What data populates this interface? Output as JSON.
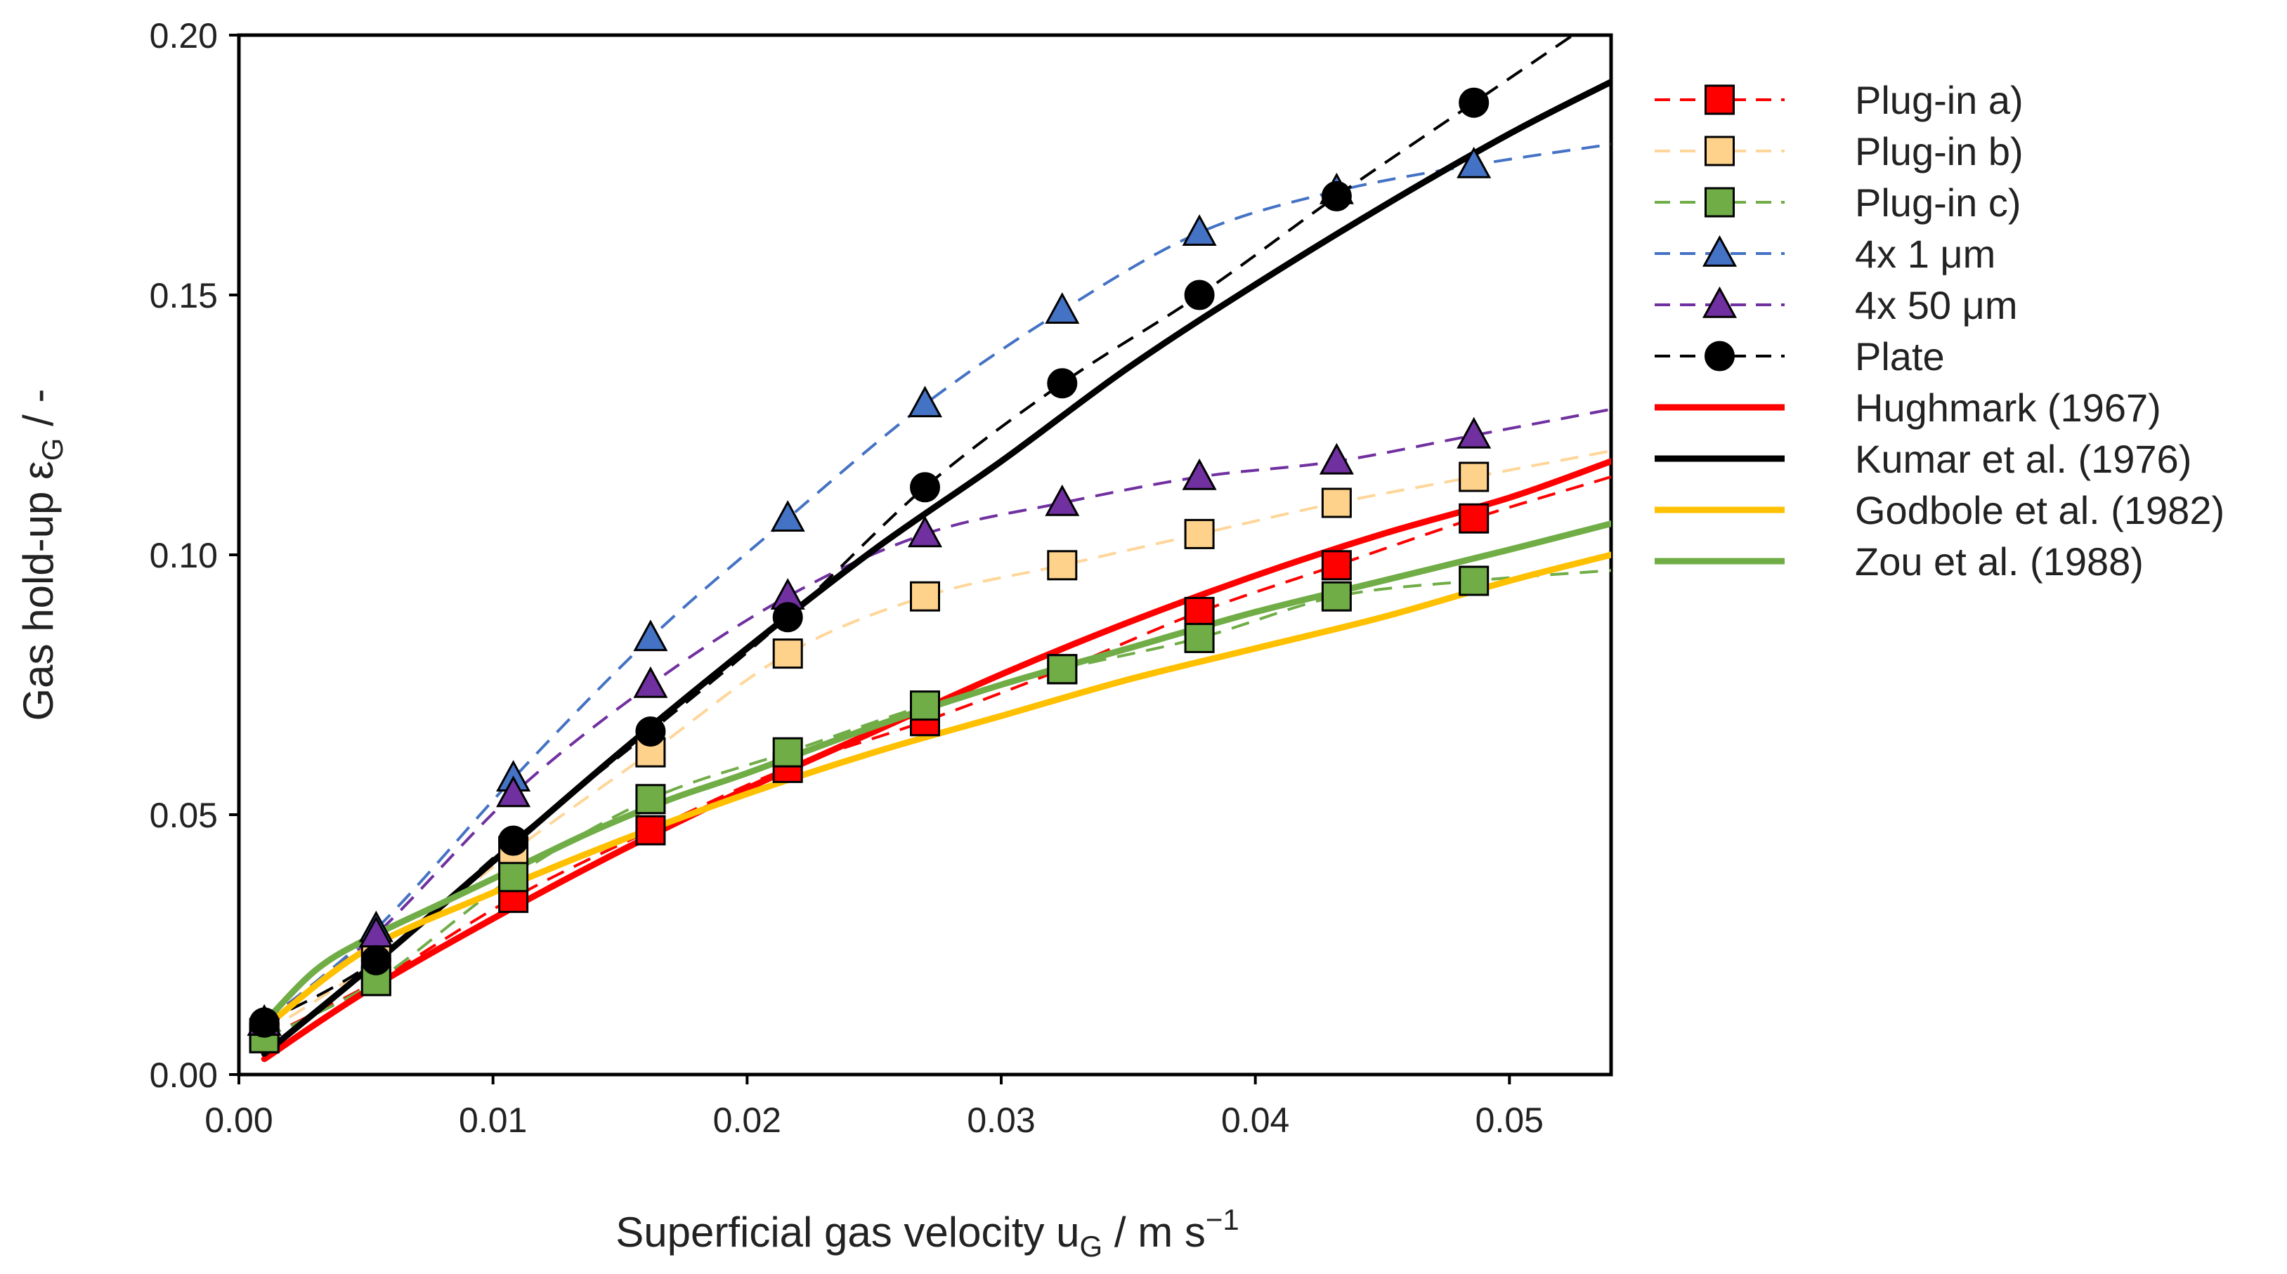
{
  "chart_data": {
    "type": "line",
    "title": "",
    "xlabel": {
      "main": "Superficial gas velocity u",
      "sub": "G",
      "tail": " / m s",
      "sup": "−1"
    },
    "ylabel": {
      "main": "Gas hold-up ε",
      "sub": "G",
      "tail": " / -"
    },
    "xlim": [
      0,
      0.054
    ],
    "ylim": [
      0,
      0.2
    ],
    "xticks": [
      0.0,
      0.01,
      0.02,
      0.03,
      0.04,
      0.05
    ],
    "xtick_labels": [
      "0.00",
      "0.01",
      "0.02",
      "0.03",
      "0.04",
      "0.05"
    ],
    "yticks": [
      0.0,
      0.05,
      0.1,
      0.15,
      0.2
    ],
    "ytick_labels": [
      "0.00",
      "0.05",
      "0.10",
      "0.15",
      "0.20"
    ],
    "grid": false,
    "legend_position": "right",
    "series": [
      {
        "name": "Plug-in a)",
        "kind": "marker",
        "marker": "square",
        "color": "#ff0000",
        "marker_fill": "#ff0000",
        "dash": true,
        "x": [
          0.001,
          0.0054,
          0.0108,
          0.0162,
          0.0216,
          0.027,
          0.0324,
          0.0378,
          0.0432,
          0.0486
        ],
        "y": [
          0.007,
          0.018,
          0.034,
          0.047,
          0.059,
          0.068,
          0.078,
          0.089,
          0.098,
          0.107
        ],
        "tail_x": 0.054,
        "tail_y": 0.115
      },
      {
        "name": "Plug-in b)",
        "kind": "marker",
        "marker": "square",
        "color": "#ffd699",
        "marker_fill": "#ffd28c",
        "dash": true,
        "x": [
          0.001,
          0.0054,
          0.0108,
          0.0162,
          0.0216,
          0.027,
          0.0324,
          0.0378,
          0.0432,
          0.0486
        ],
        "y": [
          0.008,
          0.022,
          0.043,
          0.062,
          0.081,
          0.092,
          0.098,
          0.104,
          0.11,
          0.115
        ],
        "tail_x": 0.054,
        "tail_y": 0.12
      },
      {
        "name": "Plug-in c)",
        "kind": "marker",
        "marker": "square",
        "color": "#70ad47",
        "marker_fill": "#70ad47",
        "dash": true,
        "x": [
          0.001,
          0.0054,
          0.0108,
          0.0162,
          0.0216,
          0.027,
          0.0324,
          0.0378,
          0.0432,
          0.0486
        ],
        "y": [
          0.007,
          0.018,
          0.038,
          0.053,
          0.062,
          0.071,
          0.078,
          0.084,
          0.092,
          0.095
        ],
        "tail_x": 0.054,
        "tail_y": 0.097
      },
      {
        "name": "4x 1 μm",
        "kind": "marker",
        "marker": "triangle",
        "color": "#4472c4",
        "marker_fill": "#4472c4",
        "dash": true,
        "x": [
          0.001,
          0.0054,
          0.0108,
          0.0162,
          0.0216,
          0.027,
          0.0324,
          0.0378,
          0.0432,
          0.0486
        ],
        "y": [
          0.01,
          0.028,
          0.057,
          0.084,
          0.107,
          0.129,
          0.147,
          0.162,
          0.17,
          0.175
        ],
        "tail_x": 0.054,
        "tail_y": 0.179
      },
      {
        "name": "4x 50 μm",
        "kind": "marker",
        "marker": "triangle",
        "color": "#7030a0",
        "marker_fill": "#7030a0",
        "dash": true,
        "x": [
          0.001,
          0.0054,
          0.0108,
          0.0162,
          0.0216,
          0.027,
          0.0324,
          0.0378,
          0.0432,
          0.0486
        ],
        "y": [
          0.01,
          0.027,
          0.054,
          0.075,
          0.092,
          0.104,
          0.11,
          0.115,
          0.118,
          0.123
        ],
        "tail_x": 0.054,
        "tail_y": 0.128
      },
      {
        "name": "Plate",
        "kind": "marker",
        "marker": "circle",
        "color": "#000000",
        "marker_fill": "#000000",
        "dash": true,
        "x": [
          0.001,
          0.0054,
          0.0108,
          0.0162,
          0.0216,
          0.027,
          0.0324,
          0.0378,
          0.0432,
          0.0486
        ],
        "y": [
          0.01,
          0.022,
          0.045,
          0.066,
          0.088,
          0.113,
          0.133,
          0.15,
          0.169,
          0.187
        ],
        "tail_x": 0.0525,
        "tail_y": 0.2
      },
      {
        "name": "Hughmark (1967)",
        "kind": "line",
        "color": "#ff0000",
        "x": [
          0.001,
          0.005,
          0.01,
          0.015,
          0.02,
          0.025,
          0.03,
          0.035,
          0.04,
          0.045,
          0.05,
          0.054
        ],
        "y": [
          0.003,
          0.016,
          0.03,
          0.043,
          0.055,
          0.066,
          0.077,
          0.087,
          0.096,
          0.104,
          0.111,
          0.118
        ]
      },
      {
        "name": "Kumar et al. (1976)",
        "kind": "line",
        "color": "#000000",
        "x": [
          0.001,
          0.005,
          0.01,
          0.015,
          0.02,
          0.025,
          0.03,
          0.035,
          0.04,
          0.045,
          0.05,
          0.054
        ],
        "y": [
          0.004,
          0.02,
          0.041,
          0.062,
          0.082,
          0.101,
          0.118,
          0.136,
          0.152,
          0.167,
          0.181,
          0.191
        ]
      },
      {
        "name": "Godbole et al. (1982)",
        "kind": "line",
        "color": "#ffc000",
        "x": [
          0.001,
          0.005,
          0.01,
          0.015,
          0.02,
          0.025,
          0.03,
          0.035,
          0.04,
          0.045,
          0.05,
          0.054
        ],
        "y": [
          0.009,
          0.024,
          0.035,
          0.045,
          0.054,
          0.062,
          0.069,
          0.076,
          0.082,
          0.088,
          0.095,
          0.1
        ]
      },
      {
        "name": "Zou et al. (1988)",
        "kind": "line",
        "color": "#70ad47",
        "x": [
          0.001,
          0.003,
          0.005,
          0.008,
          0.011,
          0.014,
          0.017,
          0.02,
          0.025,
          0.03,
          0.035,
          0.04,
          0.045,
          0.05,
          0.054
        ],
        "y": [
          0.01,
          0.02,
          0.026,
          0.033,
          0.04,
          0.047,
          0.053,
          0.058,
          0.067,
          0.075,
          0.082,
          0.089,
          0.095,
          0.101,
          0.106
        ]
      }
    ]
  }
}
